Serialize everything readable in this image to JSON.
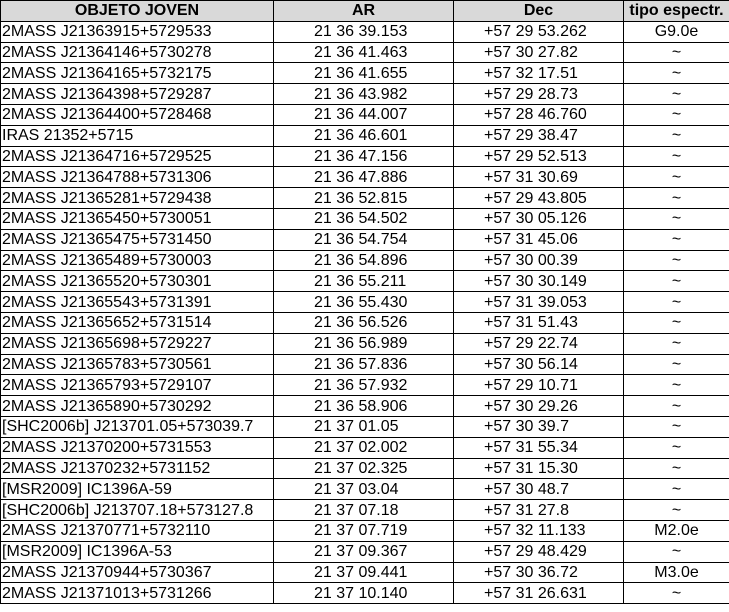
{
  "table": {
    "headers": [
      "OBJETO JOVEN",
      "AR",
      "Dec",
      "tipo espectr."
    ],
    "rows": [
      [
        "2MASS J21363915+5729533",
        "21 36 39.153",
        "+57 29 53.262",
        "G9.0e"
      ],
      [
        "2MASS J21364146+5730278",
        "21 36 41.463",
        "+57 30 27.82",
        "~"
      ],
      [
        "2MASS J21364165+5732175",
        "21 36 41.655",
        "+57 32 17.51",
        "~"
      ],
      [
        "2MASS J21364398+5729287",
        "21 36 43.982",
        "+57 29 28.73",
        "~"
      ],
      [
        "2MASS J21364400+5728468",
        "21 36 44.007",
        "+57 28 46.760",
        "~"
      ],
      [
        "IRAS 21352+5715",
        "21 36 46.601",
        "+57 29 38.47",
        "~"
      ],
      [
        "2MASS J21364716+5729525",
        "21 36 47.156",
        "+57 29 52.513",
        "~"
      ],
      [
        "2MASS J21364788+5731306",
        "21 36 47.886",
        "+57 31 30.69",
        "~"
      ],
      [
        "2MASS J21365281+5729438",
        "21 36 52.815",
        "+57 29 43.805",
        "~"
      ],
      [
        "2MASS J21365450+5730051",
        "21 36 54.502",
        "+57 30 05.126",
        "~"
      ],
      [
        "2MASS J21365475+5731450",
        "21 36 54.754",
        "+57 31 45.06",
        "~"
      ],
      [
        "2MASS J21365489+5730003",
        "21 36 54.896",
        "+57 30 00.39",
        "~"
      ],
      [
        "2MASS J21365520+5730301",
        "21 36 55.211",
        "+57 30 30.149",
        "~"
      ],
      [
        "2MASS J21365543+5731391",
        "21 36 55.430",
        "+57 31 39.053",
        "~"
      ],
      [
        "2MASS J21365652+5731514",
        "21 36 56.526",
        "+57 31 51.43",
        "~"
      ],
      [
        "2MASS J21365698+5729227",
        "21 36 56.989",
        "+57 29 22.74",
        "~"
      ],
      [
        "2MASS J21365783+5730561",
        "21 36 57.836",
        "+57 30 56.14",
        "~"
      ],
      [
        "2MASS J21365793+5729107",
        "21 36 57.932",
        "+57 29 10.71",
        "~"
      ],
      [
        "2MASS J21365890+5730292",
        "21 36 58.906",
        "+57 30 29.26",
        "~"
      ],
      [
        "[SHC2006b] J213701.05+573039.7",
        "21 37 01.05",
        "+57 30 39.7",
        "~"
      ],
      [
        "2MASS J21370200+5731553",
        "21 37 02.002",
        "+57 31 55.34",
        "~"
      ],
      [
        "2MASS J21370232+5731152",
        "21 37 02.325",
        "+57 31 15.30",
        "~"
      ],
      [
        "[MSR2009] IC1396A-59",
        "21 37 03.04",
        "+57 30 48.7",
        "~"
      ],
      [
        "[SHC2006b] J213707.18+573127.8",
        "21 37 07.18",
        "+57 31 27.8",
        "~"
      ],
      [
        "2MASS J21370771+5732110",
        "21 37 07.719",
        "+57 32 11.133",
        "M2.0e"
      ],
      [
        "[MSR2009] IC1396A-53",
        "21 37 09.367",
        "+57 29 48.429",
        "~"
      ],
      [
        "2MASS J21370944+5730367",
        "21 37 09.441",
        "+57 30 36.72",
        "M3.0e"
      ],
      [
        "2MASS J21371013+5731266",
        "21 37 10.140",
        "+57 31 26.631",
        "~"
      ]
    ]
  }
}
